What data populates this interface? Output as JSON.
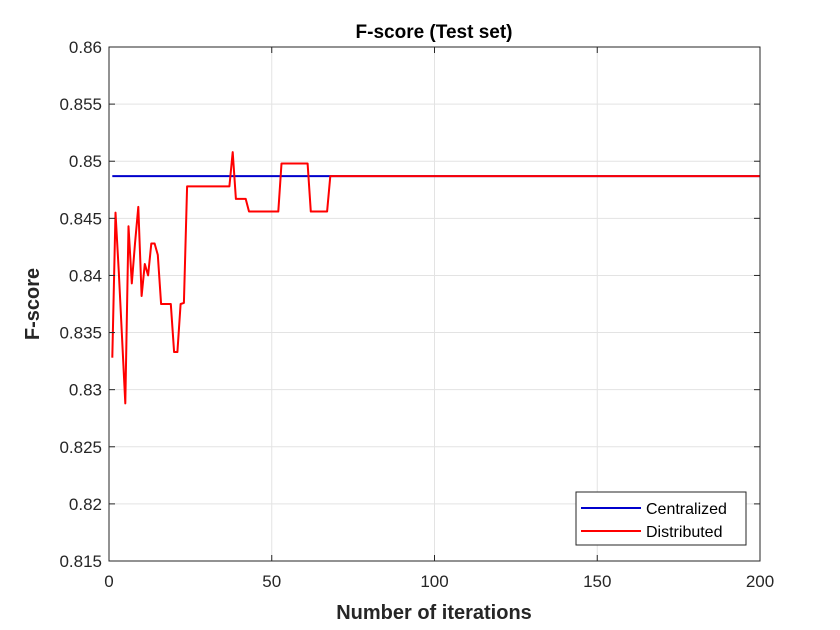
{
  "chart_data": {
    "type": "line",
    "title": "F-score (Test set)",
    "xlabel": "Number of iterations",
    "ylabel": "F-score",
    "xlim": [
      0,
      200
    ],
    "ylim": [
      0.815,
      0.86
    ],
    "x_ticks": [
      0,
      50,
      100,
      150,
      200
    ],
    "x_tick_labels": [
      "0",
      "50",
      "100",
      "150",
      "200"
    ],
    "y_ticks": [
      0.815,
      0.82,
      0.825,
      0.83,
      0.835,
      0.84,
      0.845,
      0.85,
      0.855,
      0.86
    ],
    "y_tick_labels": [
      "0.815",
      "0.82",
      "0.825",
      "0.83",
      "0.835",
      "0.84",
      "0.845",
      "0.85",
      "0.855",
      "0.86"
    ],
    "grid": true,
    "legend_position": "bottom-right",
    "series": [
      {
        "name": "Centralized",
        "color": "#0000cc",
        "x": [
          1,
          200
        ],
        "y": [
          0.8487,
          0.8487
        ]
      },
      {
        "name": "Distributed",
        "color": "#ff0000",
        "x": [
          1,
          2,
          3,
          5,
          6,
          7,
          8,
          9,
          10,
          11,
          12,
          13,
          14,
          15,
          16,
          19,
          20,
          21,
          22,
          23,
          24,
          37,
          38,
          39,
          42,
          43,
          52,
          53,
          61,
          62,
          67,
          68,
          200
        ],
        "y": [
          0.8328,
          0.8455,
          0.8403,
          0.8288,
          0.8443,
          0.8393,
          0.8428,
          0.846,
          0.8382,
          0.841,
          0.84,
          0.8428,
          0.8428,
          0.8418,
          0.8375,
          0.8375,
          0.8333,
          0.8333,
          0.8375,
          0.8376,
          0.8478,
          0.8478,
          0.8508,
          0.8467,
          0.8467,
          0.8456,
          0.8456,
          0.8498,
          0.8498,
          0.8456,
          0.8456,
          0.8487,
          0.8487
        ]
      }
    ]
  }
}
